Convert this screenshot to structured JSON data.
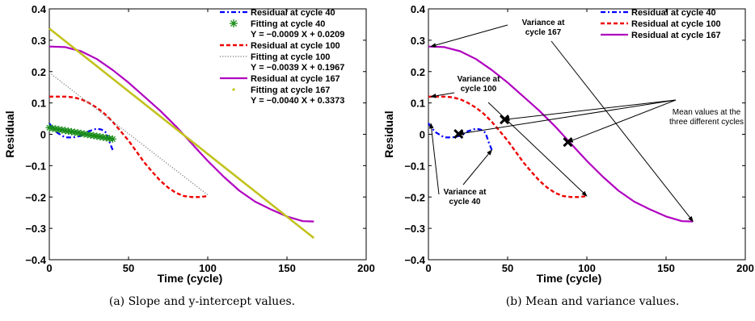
{
  "chart_data": [
    {
      "type": "line",
      "caption": "(a) Slope and y-intercept values.",
      "xlabel": "Time (cycle)",
      "ylabel": "Residual",
      "xlim": [
        0,
        200
      ],
      "ylim": [
        -0.4,
        0.4
      ],
      "xticks": [
        "0",
        "50",
        "100",
        "150",
        "200"
      ],
      "yticks": [
        "0.4",
        "0.3",
        "0.2",
        "0.1",
        "0",
        "−0.1",
        "−0.2",
        "−0.3",
        "−0.4"
      ],
      "grid": false,
      "legend_position": "top-right",
      "series": [
        {
          "name": "Residual at cycle 40",
          "style": "dashdot",
          "color": "#0000ff",
          "x": [
            0,
            2,
            5,
            10,
            15,
            20,
            25,
            30,
            33,
            36,
            38,
            40
          ],
          "y": [
            0.035,
            0.02,
            0.005,
            -0.01,
            -0.01,
            -0.005,
            0.01,
            0.018,
            0.015,
            0.005,
            -0.025,
            -0.05
          ]
        },
        {
          "name": "Fitting at cycle 40",
          "sublabel": "Y = −0.0009 X + 0.0209",
          "style": "star",
          "color": "#1a8c1a",
          "x": [
            0,
            40
          ],
          "y": [
            0.0209,
            -0.0151
          ]
        },
        {
          "name": "Residual at cycle 100",
          "style": "dashed",
          "color": "#ee0000",
          "x": [
            0,
            5,
            10,
            15,
            20,
            25,
            30,
            35,
            40,
            45,
            50,
            55,
            60,
            65,
            70,
            75,
            80,
            85,
            90,
            95,
            100
          ],
          "y": [
            0.12,
            0.12,
            0.12,
            0.118,
            0.112,
            0.1,
            0.085,
            0.065,
            0.04,
            0.01,
            -0.02,
            -0.055,
            -0.09,
            -0.12,
            -0.148,
            -0.17,
            -0.187,
            -0.197,
            -0.2,
            -0.2,
            -0.197
          ]
        },
        {
          "name": "Fitting at cycle 100",
          "sublabel": "Y = −0.0039 X + 0.1967",
          "style": "dotted",
          "color": "#888888",
          "x": [
            0,
            100
          ],
          "y": [
            0.1967,
            -0.1933
          ]
        },
        {
          "name": "Residual at cycle 167",
          "style": "solid",
          "color": "#b000c0",
          "x": [
            0,
            10,
            20,
            30,
            40,
            50,
            60,
            70,
            80,
            90,
            100,
            110,
            120,
            130,
            140,
            150,
            160,
            167
          ],
          "y": [
            0.28,
            0.278,
            0.265,
            0.24,
            0.205,
            0.165,
            0.12,
            0.075,
            0.025,
            -0.03,
            -0.085,
            -0.135,
            -0.18,
            -0.215,
            -0.24,
            -0.262,
            -0.277,
            -0.278
          ]
        },
        {
          "name": "Fitting at cycle 167",
          "sublabel": "Y =    −0.0040 X + 0.3373",
          "style": "solid-thick",
          "color": "#c2c21e",
          "x": [
            0,
            167
          ],
          "y": [
            0.3373,
            -0.3307
          ]
        }
      ]
    },
    {
      "type": "line",
      "caption": "(b) Mean and variance values.",
      "xlabel": "Time (cycle)",
      "ylabel": "Residual",
      "xlim": [
        0,
        200
      ],
      "ylim": [
        -0.4,
        0.4
      ],
      "xticks": [
        "0",
        "50",
        "100",
        "150",
        "200"
      ],
      "yticks": [
        "0.4",
        "0.3",
        "0.2",
        "0.1",
        "0",
        "−0.1",
        "−0.2",
        "−0.3",
        "−0.4"
      ],
      "grid": false,
      "legend_position": "top-right",
      "series": [
        {
          "name": "Residual at cycle 40",
          "style": "dashdot",
          "color": "#0000ff",
          "x": [
            0,
            2,
            5,
            10,
            15,
            20,
            25,
            30,
            33,
            36,
            38,
            40
          ],
          "y": [
            0.035,
            0.02,
            0.005,
            -0.01,
            -0.01,
            -0.005,
            0.01,
            0.018,
            0.015,
            0.005,
            -0.025,
            -0.05
          ]
        },
        {
          "name": "Residual at cycle 100",
          "style": "dashed",
          "color": "#ee0000",
          "x": [
            0,
            5,
            10,
            15,
            20,
            25,
            30,
            35,
            40,
            45,
            50,
            55,
            60,
            65,
            70,
            75,
            80,
            85,
            90,
            95,
            100
          ],
          "y": [
            0.12,
            0.12,
            0.12,
            0.118,
            0.112,
            0.1,
            0.085,
            0.065,
            0.04,
            0.01,
            -0.02,
            -0.055,
            -0.09,
            -0.12,
            -0.148,
            -0.17,
            -0.187,
            -0.197,
            -0.2,
            -0.2,
            -0.197
          ]
        },
        {
          "name": "Residual at cycle 167",
          "style": "solid",
          "color": "#b000c0",
          "x": [
            0,
            10,
            20,
            30,
            40,
            50,
            60,
            70,
            80,
            90,
            100,
            110,
            120,
            130,
            140,
            150,
            160,
            167
          ],
          "y": [
            0.28,
            0.278,
            0.265,
            0.24,
            0.205,
            0.165,
            0.12,
            0.075,
            0.025,
            -0.03,
            -0.085,
            -0.135,
            -0.18,
            -0.215,
            -0.24,
            -0.262,
            -0.277,
            -0.278
          ]
        }
      ],
      "mean_points": {
        "x": [
          19,
          48,
          88
        ],
        "y": [
          0.001,
          0.047,
          -0.025
        ]
      },
      "annotations": [
        {
          "id": "mean",
          "lines": [
            "Mean values at the",
            "three different cycles"
          ],
          "bold": false,
          "targets": [
            [
              19,
              0.001
            ],
            [
              48,
              0.047
            ],
            [
              88,
              -0.025
            ]
          ]
        },
        {
          "id": "var167",
          "lines": [
            "Variance at",
            "cycle 167"
          ],
          "bold": true,
          "targets": [
            [
              0,
              0.28
            ],
            [
              167,
              -0.278
            ]
          ]
        },
        {
          "id": "var100",
          "lines": [
            "Variance at",
            "cycle 100"
          ],
          "bold": true,
          "targets": [
            [
              0,
              0.12
            ],
            [
              100,
              -0.197
            ]
          ]
        },
        {
          "id": "var40",
          "lines": [
            "Variance at",
            "cycle 40"
          ],
          "bold": true,
          "targets": [
            [
              0,
              0.035
            ],
            [
              40,
              -0.05
            ]
          ]
        }
      ]
    }
  ]
}
